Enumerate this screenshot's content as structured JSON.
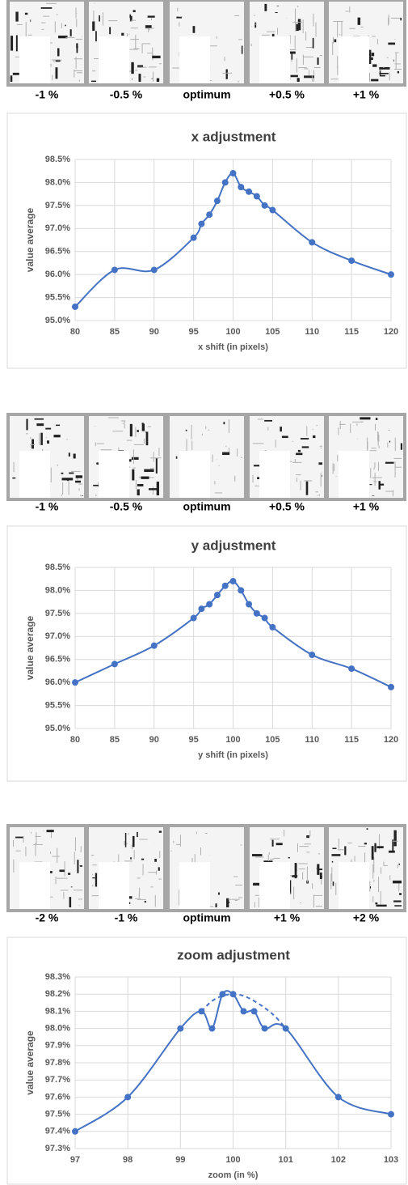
{
  "strips": [
    {
      "labels": [
        "-1 %",
        "-0.5 %",
        "optimum",
        "+0.5 %",
        "+1 %"
      ]
    },
    {
      "labels": [
        "-1 %",
        "-0.5 %",
        "optimum",
        "+0.5 %",
        "+1 %"
      ]
    },
    {
      "labels": [
        "-2 %",
        "-1 %",
        "optimum",
        "+1 %",
        "+2 %"
      ]
    }
  ],
  "chart_data": [
    {
      "type": "line",
      "title": "x adjustment",
      "x_label": "x shift (in pixels)",
      "y_label": "value average",
      "x": [
        80,
        85,
        90,
        95,
        96,
        97,
        98,
        99,
        100,
        101,
        102,
        103,
        104,
        105,
        110,
        115,
        120
      ],
      "series": [
        {
          "color": "#4472c4",
          "markers": true,
          "dashed": false,
          "values": [
            95.3,
            96.1,
            96.1,
            96.8,
            97.1,
            97.3,
            97.6,
            98.0,
            98.2,
            97.9,
            97.8,
            97.7,
            97.5,
            97.4,
            96.7,
            96.3,
            96.0
          ]
        }
      ],
      "xlim": [
        80,
        120
      ],
      "xticks": [
        80,
        85,
        90,
        95,
        100,
        105,
        110,
        115,
        120
      ],
      "ylim": [
        95,
        98.5
      ],
      "yticks": [
        {
          "value": 95,
          "label": "95.0%"
        },
        {
          "value": 95.5,
          "label": "95.5%"
        },
        {
          "value": 96,
          "label": "96.0%"
        },
        {
          "value": 96.5,
          "label": "96.5%"
        },
        {
          "value": 97,
          "label": "97.0%"
        },
        {
          "value": 97.5,
          "label": "97.5%"
        },
        {
          "value": 98,
          "label": "98.0%"
        },
        {
          "value": 98.5,
          "label": "98.5%"
        }
      ],
      "grid": true,
      "smooth": true
    },
    {
      "type": "line",
      "title": "y adjustment",
      "x_label": "y shift (in pixels)",
      "y_label": "value average",
      "x": [
        80,
        85,
        90,
        95,
        96,
        97,
        98,
        99,
        100,
        101,
        102,
        103,
        104,
        105,
        110,
        115,
        120
      ],
      "series": [
        {
          "color": "#4472c4",
          "markers": true,
          "dashed": false,
          "values": [
            96.0,
            96.4,
            96.8,
            97.4,
            97.6,
            97.7,
            97.9,
            98.1,
            98.2,
            98.0,
            97.7,
            97.5,
            97.4,
            97.2,
            96.6,
            96.3,
            95.9
          ]
        }
      ],
      "xlim": [
        80,
        120
      ],
      "xticks": [
        80,
        85,
        90,
        95,
        100,
        105,
        110,
        115,
        120
      ],
      "ylim": [
        95,
        98.5
      ],
      "yticks": [
        {
          "value": 95,
          "label": "95.0%"
        },
        {
          "value": 95.5,
          "label": "95.5%"
        },
        {
          "value": 96,
          "label": "96.0%"
        },
        {
          "value": 96.5,
          "label": "96.5%"
        },
        {
          "value": 97,
          "label": "97.0%"
        },
        {
          "value": 97.5,
          "label": "97.5%"
        },
        {
          "value": 98,
          "label": "98.0%"
        },
        {
          "value": 98.5,
          "label": "98.5%"
        }
      ],
      "grid": true,
      "smooth": true
    },
    {
      "type": "line",
      "title": "zoom adjustment",
      "x_label": "zoom (in %)",
      "y_label": "value average",
      "x": [
        97,
        98,
        99,
        99.4,
        99.6,
        99.8,
        100,
        100.2,
        100.4,
        100.6,
        101,
        102,
        103
      ],
      "series": [
        {
          "color": "#4472c4",
          "markers": true,
          "dashed": false,
          "values": [
            97.4,
            97.6,
            98.0,
            98.1,
            98.0,
            98.2,
            98.2,
            98.1,
            98.1,
            98.0,
            98.0,
            97.6,
            97.5
          ]
        },
        {
          "color": "#4472c4",
          "markers": false,
          "dashed": true,
          "x": [
            99.4,
            99.6,
            99.8,
            100,
            100.2,
            100.4,
            100.6,
            100.8,
            101
          ],
          "values": [
            98.1,
            98.16,
            98.19,
            98.2,
            98.19,
            98.16,
            98.12,
            98.07,
            98.0
          ]
        }
      ],
      "xlim": [
        97,
        103
      ],
      "xticks": [
        97,
        98,
        99,
        100,
        101,
        102,
        103
      ],
      "ylim": [
        97.3,
        98.3
      ],
      "yticks": [
        {
          "value": 97.3,
          "label": "97.3%"
        },
        {
          "value": 97.4,
          "label": "97.4%"
        },
        {
          "value": 97.5,
          "label": "97.5%"
        },
        {
          "value": 97.6,
          "label": "97.6%"
        },
        {
          "value": 97.7,
          "label": "97.7%"
        },
        {
          "value": 97.8,
          "label": "97.8%"
        },
        {
          "value": 97.9,
          "label": "97.9%"
        },
        {
          "value": 98,
          "label": "98.0%"
        },
        {
          "value": 98.1,
          "label": "98.1%"
        },
        {
          "value": 98.2,
          "label": "98.2%"
        },
        {
          "value": 98.3,
          "label": "98.3%"
        }
      ],
      "grid": true,
      "smooth": true
    }
  ]
}
